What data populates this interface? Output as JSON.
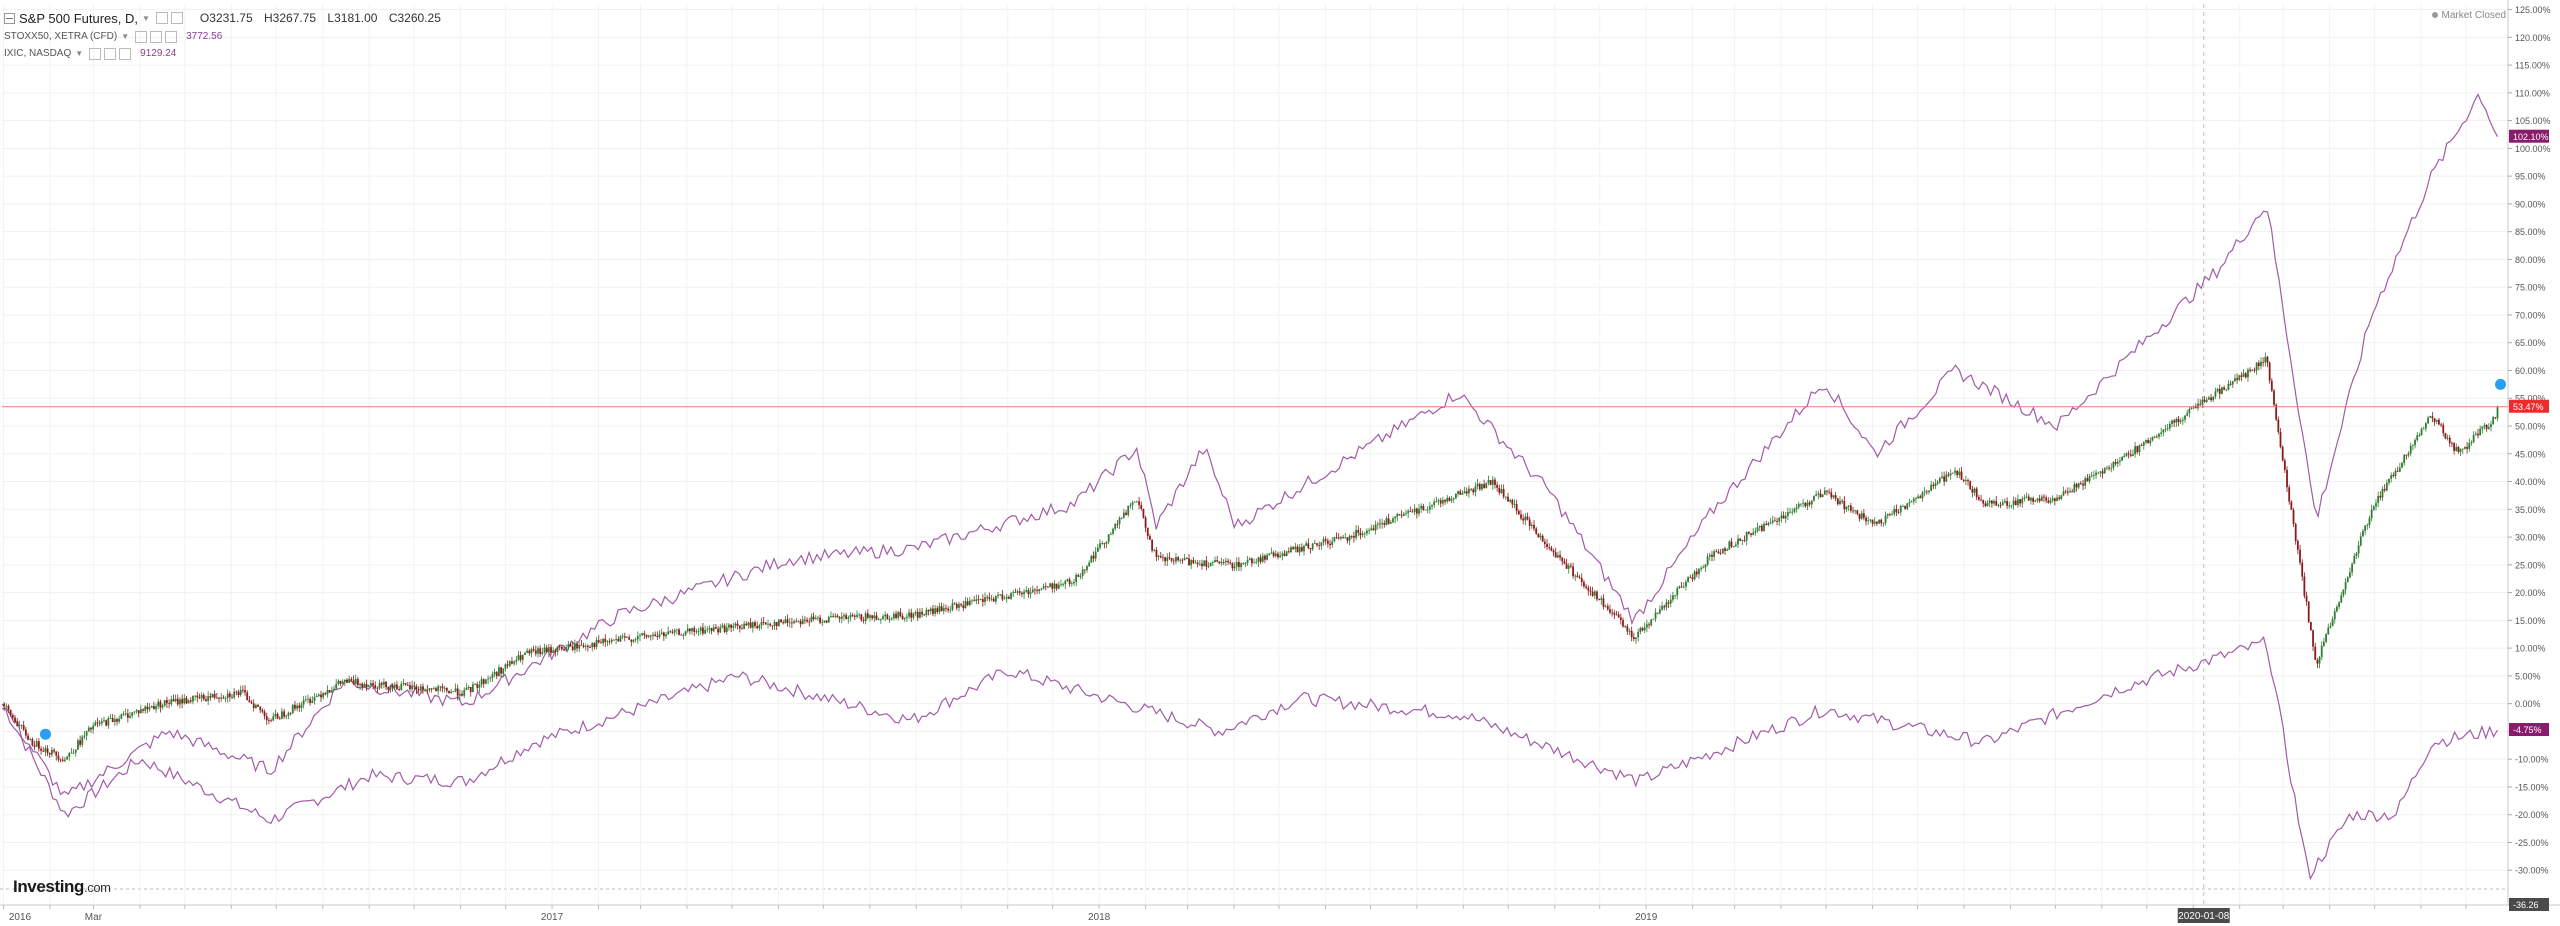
{
  "header": {
    "main_symbol": "S&P 500 Futures, D,",
    "ohlc": [
      {
        "key": "O",
        "value": "3231.75"
      },
      {
        "key": "H",
        "value": "3267.75"
      },
      {
        "key": "L",
        "value": "3181.00"
      },
      {
        "key": "C",
        "value": "3260.25"
      }
    ],
    "compare": [
      {
        "symbol": "STOXX50, XETRA (CFD)",
        "value": "3772.56"
      },
      {
        "symbol": "IXIC, NASDAQ",
        "value": "9129.24"
      }
    ],
    "market_status": "Market Closed"
  },
  "logo": {
    "brand": "Investing",
    "suffix": ".com"
  },
  "colors": {
    "up_candle": "#2e7d32",
    "down_candle": "#8b1a1a",
    "compare_line": "#a15ba7",
    "price_line": "#f07878",
    "main_tag": "#ee2b2b",
    "compare_tag": "#8a1a6b",
    "event_marker": "#2a9df4"
  },
  "chart_data": {
    "type": "line",
    "y_scale": "percent change",
    "ylim": [
      -36.26,
      126
    ],
    "y_ticks": [
      "125.00%",
      "120.00%",
      "115.00%",
      "110.00%",
      "105.00%",
      "100.00%",
      "95.00%",
      "90.00%",
      "85.00%",
      "80.00%",
      "75.00%",
      "70.00%",
      "65.00%",
      "60.00%",
      "55.00%",
      "50.00%",
      "45.00%",
      "40.00%",
      "35.00%",
      "30.00%",
      "25.00%",
      "20.00%",
      "15.00%",
      "10.00%",
      "5.00%",
      "0.00%",
      "-5.00%",
      "-10.00%",
      "-15.00%",
      "-20.00%",
      "-25.00%",
      "-30.00%"
    ],
    "x_labels": [
      "2016",
      "Mar",
      "2017",
      "2018",
      "2019"
    ],
    "crosshair_date": "2020-01-08",
    "bottom_value_tag": "-36.26",
    "series": [
      {
        "name": "S&P 500 Futures, D,",
        "style": "candlestick",
        "last_tag": "53.47%",
        "points": [
          [
            "2015-12-31",
            0
          ],
          [
            "2016-01-20",
            -7
          ],
          [
            "2016-02-11",
            -10
          ],
          [
            "2016-03-01",
            -4
          ],
          [
            "2016-04-15",
            0
          ],
          [
            "2016-06-08",
            2
          ],
          [
            "2016-06-27",
            -3
          ],
          [
            "2016-08-15",
            4
          ],
          [
            "2016-11-04",
            2
          ],
          [
            "2016-12-15",
            9
          ],
          [
            "2017-03-01",
            12
          ],
          [
            "2017-06-15",
            15
          ],
          [
            "2017-09-01",
            16
          ],
          [
            "2017-12-15",
            22
          ],
          [
            "2018-01-26",
            37
          ],
          [
            "2018-02-08",
            26
          ],
          [
            "2018-04-02",
            25
          ],
          [
            "2018-06-15",
            30
          ],
          [
            "2018-09-20",
            40
          ],
          [
            "2018-10-29",
            28
          ],
          [
            "2018-12-24",
            12
          ],
          [
            "2019-02-15",
            27
          ],
          [
            "2019-04-30",
            38
          ],
          [
            "2019-06-03",
            32
          ],
          [
            "2019-07-26",
            42
          ],
          [
            "2019-08-15",
            36
          ],
          [
            "2019-10-02",
            37
          ],
          [
            "2019-11-25",
            46
          ],
          [
            "2020-01-17",
            56
          ],
          [
            "2020-02-19",
            62
          ],
          [
            "2020-03-23",
            7
          ],
          [
            "2020-04-29",
            35
          ],
          [
            "2020-06-08",
            52
          ],
          [
            "2020-06-26",
            45
          ],
          [
            "2020-07-22",
            52
          ]
        ]
      },
      {
        "name": "STOXX50, XETRA (CFD)",
        "style": "line",
        "last_tag": "-4.75%",
        "points": [
          [
            "2015-12-31",
            0
          ],
          [
            "2016-02-11",
            -20
          ],
          [
            "2016-04-01",
            -10
          ],
          [
            "2016-06-27",
            -21
          ],
          [
            "2016-09-01",
            -13
          ],
          [
            "2016-11-04",
            -14
          ],
          [
            "2016-12-20",
            -7
          ],
          [
            "2017-05-05",
            5
          ],
          [
            "2017-08-29",
            -3
          ],
          [
            "2017-11-01",
            6
          ],
          [
            "2018-03-23",
            -5
          ],
          [
            "2018-05-15",
            1
          ],
          [
            "2018-09-01",
            -2
          ],
          [
            "2018-12-27",
            -14
          ],
          [
            "2019-04-30",
            -1
          ],
          [
            "2019-08-15",
            -7
          ],
          [
            "2019-11-15",
            3
          ],
          [
            "2020-02-19",
            11
          ],
          [
            "2020-03-18",
            -31
          ],
          [
            "2020-04-15",
            -20
          ],
          [
            "2020-05-15",
            -20
          ],
          [
            "2020-06-08",
            -7
          ],
          [
            "2020-07-22",
            -4.75
          ]
        ]
      },
      {
        "name": "IXIC, NASDAQ",
        "style": "line",
        "last_tag": "102.10%",
        "points": [
          [
            "2015-12-31",
            0
          ],
          [
            "2016-02-11",
            -17
          ],
          [
            "2016-04-20",
            -5
          ],
          [
            "2016-06-27",
            -12
          ],
          [
            "2016-08-15",
            4
          ],
          [
            "2016-11-04",
            0
          ],
          [
            "2017-02-15",
            16
          ],
          [
            "2017-06-08",
            26
          ],
          [
            "2017-09-01",
            28
          ],
          [
            "2017-12-15",
            36
          ],
          [
            "2018-01-26",
            46
          ],
          [
            "2018-02-08",
            32
          ],
          [
            "2018-03-12",
            46
          ],
          [
            "2018-04-02",
            32
          ],
          [
            "2018-08-29",
            56
          ],
          [
            "2018-10-29",
            38
          ],
          [
            "2018-12-24",
            15
          ],
          [
            "2019-02-15",
            35
          ],
          [
            "2019-04-30",
            58
          ],
          [
            "2019-06-03",
            45
          ],
          [
            "2019-07-26",
            60
          ],
          [
            "2019-10-02",
            50
          ],
          [
            "2020-01-17",
            78
          ],
          [
            "2020-02-19",
            90
          ],
          [
            "2020-03-23",
            33
          ],
          [
            "2020-04-29",
            70
          ],
          [
            "2020-06-08",
            95
          ],
          [
            "2020-07-10",
            110
          ],
          [
            "2020-07-22",
            102.1
          ]
        ]
      }
    ]
  }
}
